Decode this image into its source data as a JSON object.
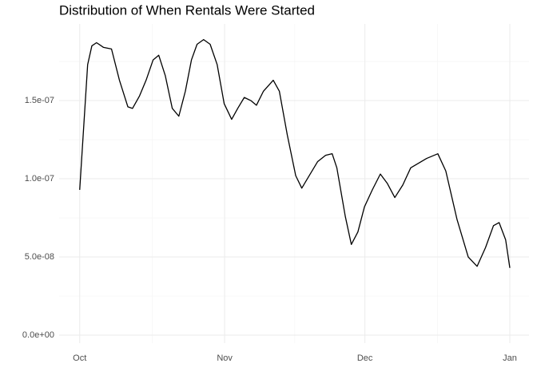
{
  "chart_data": {
    "type": "line",
    "title": "Distribution of When Rentals Were Started",
    "x": [
      0,
      0.85,
      1.7,
      2.6,
      3.6,
      5.1,
      6.8,
      8.5,
      10.3,
      11.3,
      12.8,
      14.2,
      15.7,
      16.9,
      18.3,
      19.8,
      21.2,
      22.6,
      23.9,
      25.1,
      26.5,
      27.9,
      29.4,
      30.9,
      32.5,
      33.8,
      35.2,
      36.6,
      37.8,
      39.3,
      41.4,
      42.7,
      44.4,
      46.2,
      47.5,
      49.1,
      50.9,
      52.6,
      54.0,
      55.0,
      56.8,
      58.1,
      59.5,
      60.9,
      62.6,
      64.3,
      65.8,
      67.4,
      69.1,
      70.8,
      72.5,
      74.2,
      76.6,
      78.3,
      80.7,
      83.1,
      85.0,
      86.8,
      88.5,
      89.7,
      91.1,
      92.0
    ],
    "series": [
      {
        "color": "#000000",
        "values": [
          9.29e-08,
          1.33e-07,
          1.73e-07,
          1.85e-07,
          1.87e-07,
          1.84e-07,
          1.83e-07,
          1.63e-07,
          1.46e-07,
          1.45e-07,
          1.53e-07,
          1.63e-07,
          1.76e-07,
          1.79e-07,
          1.66e-07,
          1.45e-07,
          1.4e-07,
          1.56e-07,
          1.76e-07,
          1.86e-07,
          1.89e-07,
          1.86e-07,
          1.73e-07,
          1.48e-07,
          1.38e-07,
          1.45e-07,
          1.52e-07,
          1.5e-07,
          1.47e-07,
          1.56e-07,
          1.63e-07,
          1.56e-07,
          1.28e-07,
          1.02e-07,
          9.4e-08,
          1.02e-07,
          1.11e-07,
          1.15e-07,
          1.16e-07,
          1.07e-07,
          7.6e-08,
          5.8e-08,
          6.6e-08,
          8.2e-08,
          9.3e-08,
          1.03e-07,
          9.7e-08,
          8.8e-08,
          9.6e-08,
          1.07e-07,
          1.1e-07,
          1.13e-07,
          1.16e-07,
          1.05e-07,
          7.4e-08,
          5e-08,
          4.4e-08,
          5.6e-08,
          7e-08,
          7.2e-08,
          6.1e-08,
          4.3e-08
        ]
      }
    ],
    "xlim": [
      -4.4,
      96.1
    ],
    "xticks": [
      {
        "value": 0,
        "label": "Oct"
      },
      {
        "value": 31,
        "label": "Nov"
      },
      {
        "value": 61,
        "label": "Dec"
      },
      {
        "value": 92,
        "label": "Jan"
      }
    ],
    "ylim": [
      -5.1e-09,
      1.99e-07
    ],
    "yticks": [
      {
        "value": 0,
        "label": "0.0e+00"
      },
      {
        "value": 5e-08,
        "label": "5.0e-08"
      },
      {
        "value": 1e-07,
        "label": "1.0e-07"
      },
      {
        "value": 1.5e-07,
        "label": "1.5e-07"
      }
    ],
    "grid": true
  }
}
